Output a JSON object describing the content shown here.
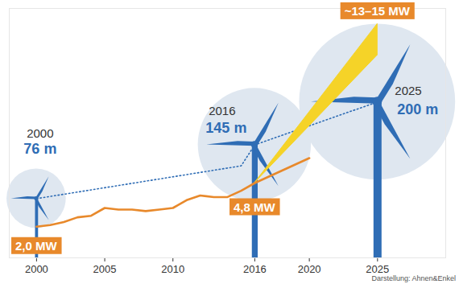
{
  "chart_data": {
    "type": "line",
    "caption": "Darstellung: Ahnen&Enkel",
    "xlim": [
      1998,
      2030
    ],
    "xticks": [
      2000,
      2005,
      2010,
      2016,
      2020,
      2025
    ],
    "ylim": [
      0,
      16
    ],
    "y2lim": [
      0,
      320
    ],
    "tick_labels": "x",
    "series": [
      {
        "type": "area",
        "color": "#f5d328",
        "x": [
          2016,
          2025
        ],
        "low": [
          4.8,
          13
        ],
        "high": [
          4.8,
          15
        ],
        "value_labels": [
          null,
          "~13–15 MW"
        ]
      },
      {
        "type": "line",
        "color": "#e8892b",
        "x": [
          2000,
          2001,
          2002,
          2003,
          2004,
          2005,
          2006,
          2007,
          2008,
          2009,
          2010,
          2011,
          2012,
          2013,
          2014,
          2015,
          2016,
          2017,
          2018,
          2019,
          2020
        ],
        "values": [
          2.0,
          2.1,
          2.3,
          2.6,
          2.7,
          3.2,
          3.1,
          3.1,
          3.0,
          3.1,
          3.2,
          3.7,
          4.0,
          3.9,
          3.9,
          4.3,
          4.8,
          5.2,
          5.6,
          6.0,
          6.4
        ],
        "value_labels": [
          "2,0 MW",
          null,
          null,
          null,
          null,
          null,
          null,
          null,
          null,
          null,
          null,
          null,
          null,
          null,
          null,
          null,
          "4,8 MW",
          null,
          null,
          null,
          null
        ]
      },
      {
        "type": "line",
        "color": "#2f6db5",
        "axis": "y2",
        "line_style": "dotted",
        "marker": "turbine",
        "x": [
          2000,
          2015,
          2016,
          2025
        ],
        "values": [
          76,
          118,
          145,
          200
        ],
        "value_labels": [
          "76 m",
          null,
          "145 m",
          "200 m"
        ]
      }
    ]
  }
}
